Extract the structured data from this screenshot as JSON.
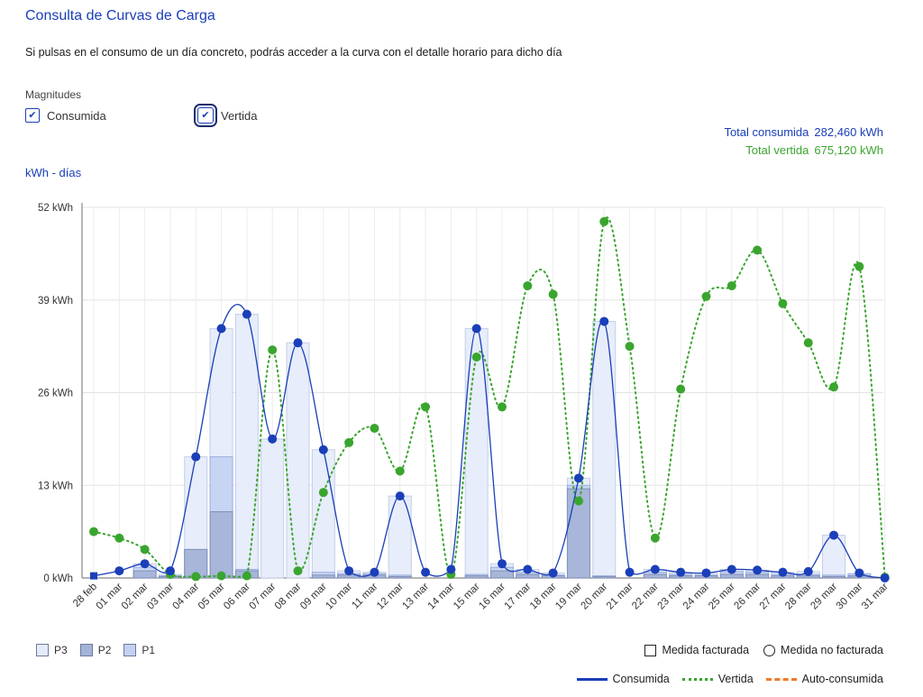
{
  "header": {
    "title": "Consulta de Curvas de Carga",
    "description": "Si pulsas en el consumo de un día concreto, podrás acceder a la curva con el detalle horario para dicho día"
  },
  "magnitudes": {
    "title": "Magnitudes",
    "consumida": {
      "label": "Consumida",
      "checked": true
    },
    "vertida": {
      "label": "Vertida",
      "checked": true
    }
  },
  "totals": {
    "consumida_label": "Total consumida",
    "consumida_value": "282,460 kWh",
    "vertida_label": "Total vertida",
    "vertida_value": "675,120 kWh"
  },
  "colors": {
    "consumida": "#1a3fb8",
    "vertida": "#3aa52e",
    "autoconsumida": "#f07a2a",
    "p3": "#e4ebf9",
    "p2": "#a3b2d6",
    "p1": "#c4d0f2"
  },
  "chart_data": {
    "type": "bar",
    "unit_label": "kWh - días",
    "ylim": [
      0,
      52
    ],
    "yticks": [
      0,
      13,
      26,
      39,
      52
    ],
    "ytick_labels": [
      "0 kWh",
      "13 kWh",
      "26 kWh",
      "39 kWh",
      "52 kWh"
    ],
    "grid": true,
    "categories": [
      "28 feb",
      "01 mar",
      "02 mar",
      "03 mar",
      "04 mar",
      "05 mar",
      "06 mar",
      "07 mar",
      "08 mar",
      "09 mar",
      "10 mar",
      "11 mar",
      "12 mar",
      "13 mar",
      "14 mar",
      "15 mar",
      "16 mar",
      "17 mar",
      "18 mar",
      "19 mar",
      "20 mar",
      "21 mar",
      "22 mar",
      "23 mar",
      "24 mar",
      "25 mar",
      "26 mar",
      "27 mar",
      "28 mar",
      "29 mar",
      "30 mar",
      "31 mar"
    ],
    "bars": [
      {
        "name": "P3",
        "values": [
          0,
          0,
          2,
          0.5,
          17,
          35,
          37,
          19.5,
          33,
          18,
          1,
          0.8,
          11.5,
          0,
          0,
          35,
          2,
          1.2,
          0.7,
          14,
          36,
          0,
          1.2,
          0.8,
          0.7,
          1.2,
          1.1,
          0.8,
          0.9,
          6,
          0,
          0
        ]
      },
      {
        "name": "P1",
        "values": [
          0,
          0,
          1.5,
          0.3,
          4,
          17,
          1.2,
          0,
          0,
          0.8,
          0.6,
          0.6,
          0.4,
          0,
          0,
          0.5,
          1.5,
          0.8,
          0.4,
          13,
          0.3,
          0,
          0.8,
          0.5,
          0.4,
          0.9,
          0.8,
          0.5,
          0.5,
          0.4,
          0.6,
          0
        ]
      },
      {
        "name": "P2",
        "values": [
          0,
          0,
          1,
          0.2,
          4,
          9.3,
          1,
          0,
          0,
          0.4,
          0.4,
          0.4,
          0.2,
          0,
          0,
          0.3,
          1,
          0.5,
          0.3,
          12.5,
          0.2,
          0,
          0.5,
          0.3,
          0.3,
          0.5,
          0.5,
          0.3,
          0.3,
          0.2,
          0.3,
          0
        ]
      }
    ],
    "series": [
      {
        "name": "Consumida",
        "values": [
          0.3,
          1,
          2,
          1,
          17,
          35,
          37,
          19.5,
          33,
          18,
          1,
          0.8,
          11.5,
          0.8,
          1.2,
          35,
          2,
          1.2,
          0.7,
          14,
          36,
          0.8,
          1.2,
          0.8,
          0.7,
          1.2,
          1.1,
          0.8,
          0.9,
          6,
          0.7,
          0
        ]
      },
      {
        "name": "Vertida",
        "values": [
          6.5,
          5.6,
          4,
          0.5,
          0.2,
          0.3,
          0.3,
          32,
          1,
          12,
          19,
          21,
          15,
          24,
          0.5,
          31,
          24,
          41,
          39.8,
          10.8,
          50,
          32.5,
          5.6,
          26.5,
          39.5,
          41,
          46,
          38.5,
          33,
          26.8,
          43.7,
          0.1
        ]
      }
    ],
    "legend_bars": [
      "P3",
      "P2",
      "P1"
    ],
    "legend_medida": [
      "Medida facturada",
      "Medida no facturada"
    ],
    "legend_lines": [
      "Consumida",
      "Vertida",
      "Auto-consumida"
    ]
  }
}
